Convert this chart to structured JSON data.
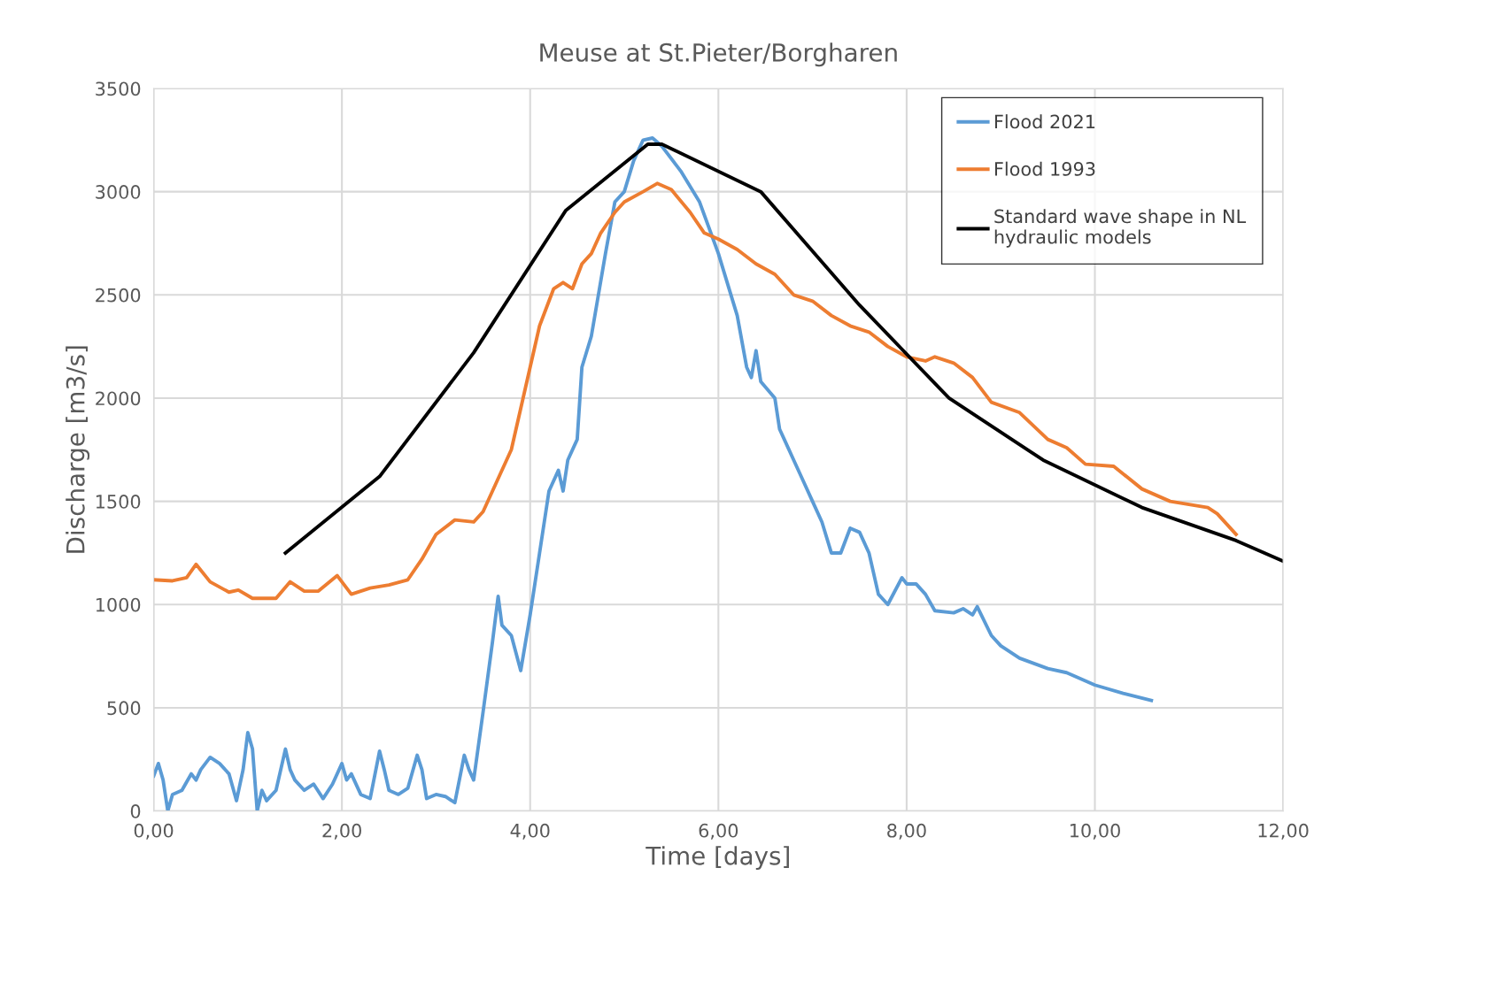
{
  "chart_data": {
    "type": "line",
    "title": "Meuse at St.Pieter/Borgharen",
    "xlabel": "Time [days]",
    "ylabel": "Discharge [m3/s]",
    "xlim": [
      0,
      12
    ],
    "xticks": [
      {
        "value": 0,
        "label": "0,00"
      },
      {
        "value": 2,
        "label": "2,00"
      },
      {
        "value": 4,
        "label": "4,00"
      },
      {
        "value": 6,
        "label": "6,00"
      },
      {
        "value": 8,
        "label": "8,00"
      },
      {
        "value": 10,
        "label": "10,00"
      },
      {
        "value": 12,
        "label": "12,00"
      }
    ],
    "ylim": [
      0,
      3500
    ],
    "yticks": [
      0,
      500,
      1000,
      1500,
      2000,
      2500,
      3000,
      3500
    ],
    "grid": true,
    "legend": "top right",
    "marker": "none",
    "line_style": "solid",
    "series": [
      {
        "name": "Flood 2021",
        "color": "#5b9bd5",
        "x": [
          0,
          0.05,
          0.1,
          0.15,
          0.2,
          0.3,
          0.4,
          0.45,
          0.5,
          0.6,
          0.7,
          0.8,
          0.88,
          0.95,
          1.0,
          1.05,
          1.1,
          1.15,
          1.2,
          1.3,
          1.4,
          1.45,
          1.5,
          1.6,
          1.7,
          1.8,
          1.9,
          2.0,
          2.05,
          2.1,
          2.2,
          2.3,
          2.4,
          2.45,
          2.5,
          2.6,
          2.7,
          2.8,
          2.85,
          2.9,
          3.0,
          3.1,
          3.2,
          3.3,
          3.35,
          3.4,
          3.5,
          3.6,
          3.66,
          3.7,
          3.8,
          3.9,
          4.0,
          4.1,
          4.2,
          4.3,
          4.35,
          4.4,
          4.5,
          4.55,
          4.65,
          4.8,
          4.9,
          5.0,
          5.1,
          5.2,
          5.3,
          5.4,
          5.6,
          5.8,
          6.0,
          6.2,
          6.3,
          6.35,
          6.4,
          6.45,
          6.6,
          6.65,
          6.7,
          6.8,
          6.9,
          7.0,
          7.1,
          7.2,
          7.3,
          7.4,
          7.5,
          7.6,
          7.7,
          7.8,
          7.95,
          8.0,
          8.1,
          8.2,
          8.3,
          8.5,
          8.6,
          8.7,
          8.75,
          8.9,
          9.0,
          9.2,
          9.5,
          9.7,
          10.0,
          10.3,
          10.6
        ],
        "values": [
          170,
          230,
          150,
          0,
          80,
          100,
          180,
          150,
          200,
          260,
          230,
          180,
          50,
          200,
          380,
          300,
          0,
          100,
          50,
          100,
          300,
          200,
          150,
          100,
          130,
          60,
          130,
          230,
          150,
          180,
          80,
          60,
          290,
          200,
          100,
          80,
          110,
          270,
          200,
          60,
          80,
          70,
          40,
          270,
          200,
          150,
          480,
          820,
          1040,
          900,
          850,
          680,
          950,
          1250,
          1550,
          1650,
          1550,
          1700,
          1800,
          2150,
          2300,
          2700,
          2950,
          3000,
          3150,
          3250,
          3260,
          3220,
          3100,
          2950,
          2700,
          2400,
          2150,
          2100,
          2230,
          2080,
          2000,
          1850,
          1800,
          1700,
          1600,
          1500,
          1400,
          1250,
          1250,
          1370,
          1350,
          1250,
          1050,
          1000,
          1130,
          1100,
          1100,
          1050,
          970,
          960,
          980,
          950,
          990,
          850,
          800,
          740,
          690,
          670,
          610,
          570,
          535
        ]
      },
      {
        "name": "Flood 1993",
        "color": "#ed7d31",
        "x": [
          0,
          0.2,
          0.35,
          0.45,
          0.6,
          0.8,
          0.9,
          1.05,
          1.3,
          1.45,
          1.6,
          1.75,
          1.95,
          2.1,
          2.3,
          2.5,
          2.7,
          2.85,
          3.0,
          3.2,
          3.4,
          3.5,
          3.65,
          3.8,
          3.95,
          4.1,
          4.25,
          4.35,
          4.45,
          4.55,
          4.65,
          4.75,
          4.9,
          5.0,
          5.2,
          5.35,
          5.5,
          5.7,
          5.85,
          6.0,
          6.2,
          6.4,
          6.6,
          6.8,
          7.0,
          7.2,
          7.4,
          7.6,
          7.8,
          8.0,
          8.2,
          8.3,
          8.5,
          8.7,
          8.9,
          9.2,
          9.5,
          9.7,
          9.9,
          10.2,
          10.5,
          10.8,
          11.2,
          11.3,
          11.5
        ],
        "values": [
          1120,
          1115,
          1130,
          1195,
          1110,
          1060,
          1070,
          1030,
          1030,
          1110,
          1065,
          1065,
          1140,
          1050,
          1080,
          1095,
          1120,
          1220,
          1340,
          1410,
          1400,
          1450,
          1600,
          1750,
          2050,
          2350,
          2530,
          2560,
          2530,
          2650,
          2700,
          2800,
          2900,
          2950,
          3000,
          3040,
          3010,
          2900,
          2800,
          2770,
          2720,
          2650,
          2600,
          2500,
          2470,
          2400,
          2350,
          2320,
          2250,
          2200,
          2180,
          2200,
          2170,
          2100,
          1980,
          1930,
          1800,
          1760,
          1680,
          1670,
          1560,
          1500,
          1470,
          1440,
          1340
        ]
      },
      {
        "name": "Standard wave shape in NL hydraulic models",
        "color": "#000000",
        "x": [
          1.4,
          2.4,
          3.4,
          4.38,
          5.25,
          5.4,
          6.45,
          7.5,
          8.45,
          9.45,
          10.5,
          11.5,
          12.0
        ],
        "values": [
          1250,
          1620,
          2220,
          2910,
          3230,
          3230,
          3000,
          2450,
          2000,
          1700,
          1470,
          1310,
          1210
        ]
      }
    ]
  }
}
